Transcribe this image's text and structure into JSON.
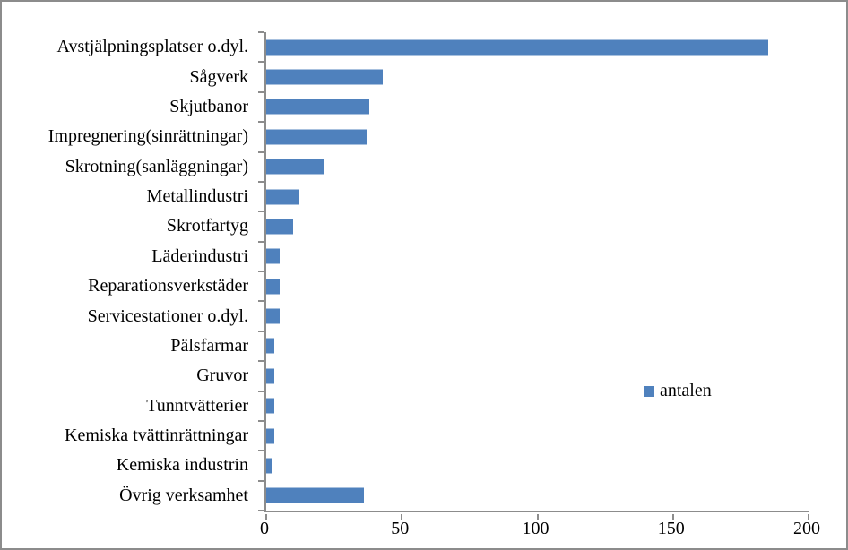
{
  "chart_data": {
    "type": "bar",
    "orientation": "horizontal",
    "title": "",
    "categories": [
      "Avstjälpningsplatser o.dyl.",
      "Sågverk",
      "Skjutbanor",
      "Impregnering(sinrättningar)",
      "Skrotning(sanläggningar)",
      "Metallindustri",
      "Skrotfartyg",
      "Läderindustri",
      "Reparationsverkstäder",
      "Servicestationer o.dyl.",
      "Pälsfarmar",
      "Gruvor",
      "Tunntvätterier",
      "Kemiska tvättinrättningar",
      "Kemiska industrin",
      "Övrig verksamhet"
    ],
    "series": [
      {
        "name": "antalen",
        "values": [
          185,
          43,
          38,
          37,
          21,
          12,
          10,
          5,
          5,
          5,
          3,
          3,
          3,
          3,
          2,
          36
        ]
      }
    ],
    "xlabel": "",
    "ylabel": "",
    "xlim": [
      0,
      200
    ],
    "x_ticks": [
      0,
      50,
      100,
      150,
      200
    ],
    "grid": false,
    "bar_color": "#4F81BD",
    "axis_color": "#8C8C8C",
    "legend": {
      "label": "antalen",
      "position": "right"
    }
  }
}
